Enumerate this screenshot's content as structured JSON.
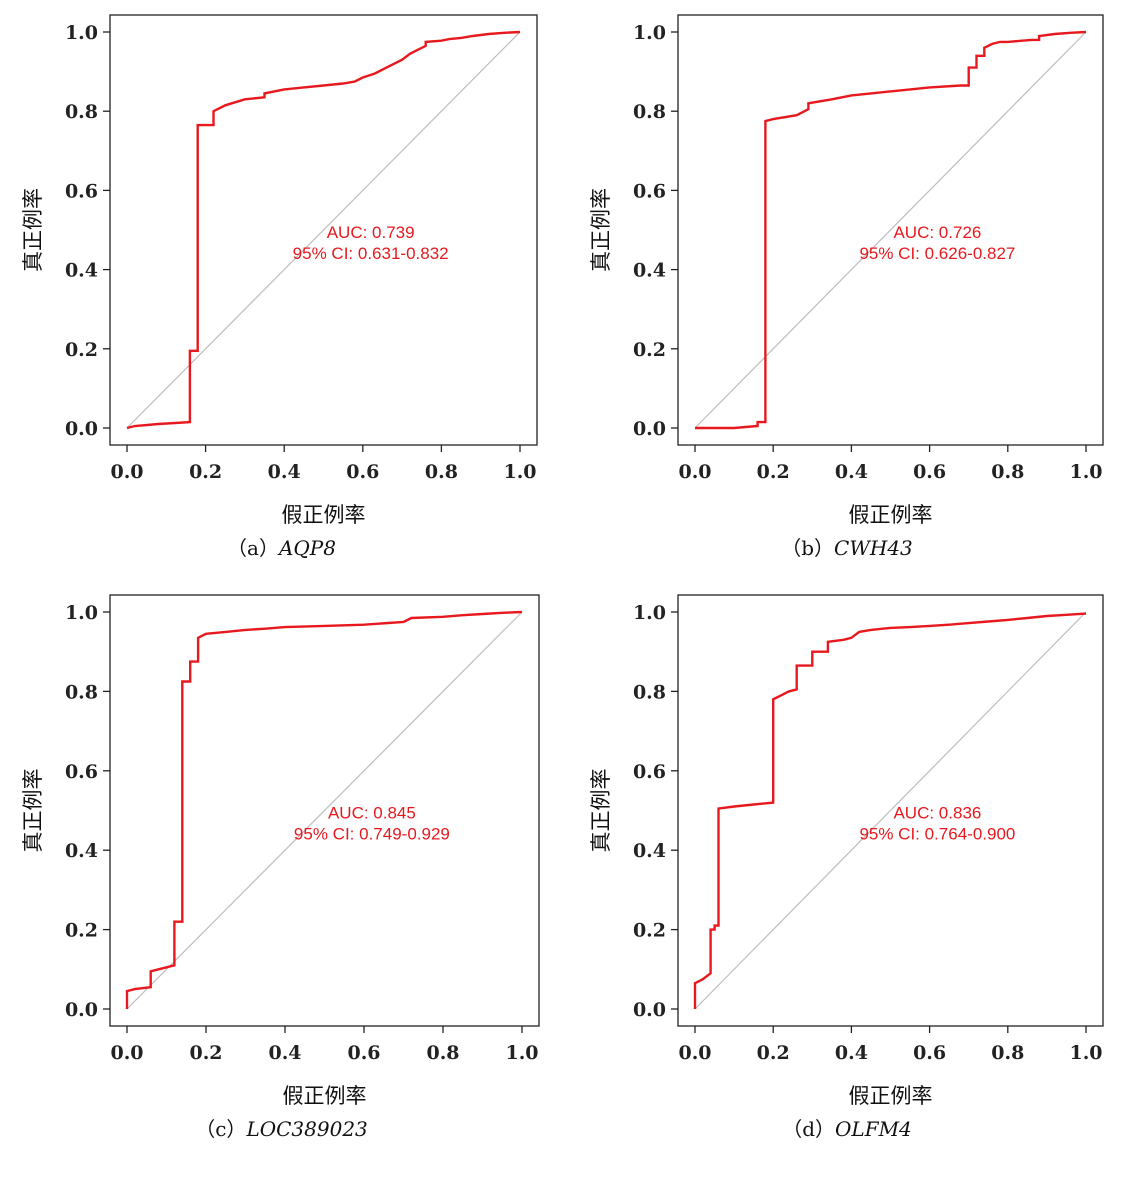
{
  "xlabel": "假正例率",
  "ylabel": "真正例率",
  "ticks": [
    "0.0",
    "0.2",
    "0.4",
    "0.6",
    "0.8",
    "1.0"
  ],
  "colors": {
    "roc": "#e8191e",
    "diagonal": "#bdbdbd",
    "frame": "#222222"
  },
  "chart_data": [
    {
      "type": "line",
      "caption_prefix": "（a）",
      "caption_gene": "AQP8",
      "auc_text": "AUC: 0.739",
      "ci_text": "95% CI: 0.631-0.832",
      "xlim": [
        0,
        1
      ],
      "ylim": [
        0,
        1
      ],
      "series": [
        {
          "x": [
            0.0,
            0.02,
            0.08,
            0.16,
            0.16,
            0.18,
            0.18,
            0.22,
            0.22,
            0.25,
            0.3,
            0.35,
            0.35,
            0.4,
            0.45,
            0.5,
            0.55,
            0.58,
            0.6,
            0.63,
            0.65,
            0.68,
            0.7,
            0.72,
            0.74,
            0.76,
            0.76,
            0.8,
            0.82,
            0.85,
            0.88,
            0.92,
            0.96,
            1.0
          ],
          "y": [
            0.0,
            0.005,
            0.01,
            0.015,
            0.195,
            0.195,
            0.765,
            0.765,
            0.8,
            0.815,
            0.83,
            0.835,
            0.845,
            0.855,
            0.86,
            0.865,
            0.87,
            0.875,
            0.885,
            0.895,
            0.905,
            0.92,
            0.93,
            0.945,
            0.955,
            0.965,
            0.975,
            0.978,
            0.982,
            0.985,
            0.99,
            0.995,
            0.998,
            1.0
          ]
        }
      ]
    },
    {
      "type": "line",
      "caption_prefix": "（b）",
      "caption_gene": "CWH43",
      "auc_text": "AUC: 0.726",
      "ci_text": "95% CI: 0.626-0.827",
      "xlim": [
        0,
        1
      ],
      "ylim": [
        0,
        1
      ],
      "series": [
        {
          "x": [
            0.0,
            0.1,
            0.16,
            0.16,
            0.18,
            0.18,
            0.2,
            0.26,
            0.29,
            0.29,
            0.35,
            0.4,
            0.45,
            0.5,
            0.55,
            0.6,
            0.68,
            0.7,
            0.7,
            0.72,
            0.72,
            0.74,
            0.74,
            0.76,
            0.78,
            0.8,
            0.86,
            0.88,
            0.88,
            0.92,
            0.96,
            1.0
          ],
          "y": [
            0.0,
            0.0,
            0.005,
            0.015,
            0.015,
            0.775,
            0.78,
            0.79,
            0.805,
            0.82,
            0.83,
            0.84,
            0.845,
            0.85,
            0.855,
            0.86,
            0.865,
            0.865,
            0.91,
            0.91,
            0.94,
            0.94,
            0.96,
            0.97,
            0.975,
            0.975,
            0.98,
            0.98,
            0.99,
            0.995,
            0.998,
            1.0
          ]
        }
      ]
    },
    {
      "type": "line",
      "caption_prefix": "（c）",
      "caption_gene": "LOC389023",
      "auc_text": "AUC: 0.845",
      "ci_text": "95% CI: 0.749-0.929",
      "xlim": [
        0,
        1
      ],
      "ylim": [
        0,
        1
      ],
      "series": [
        {
          "x": [
            0.0,
            0.0,
            0.02,
            0.06,
            0.06,
            0.08,
            0.1,
            0.12,
            0.12,
            0.14,
            0.14,
            0.16,
            0.16,
            0.18,
            0.18,
            0.2,
            0.25,
            0.3,
            0.35,
            0.4,
            0.5,
            0.6,
            0.7,
            0.72,
            0.8,
            0.85,
            0.9,
            0.95,
            1.0
          ],
          "y": [
            0.0,
            0.045,
            0.05,
            0.055,
            0.095,
            0.1,
            0.105,
            0.11,
            0.22,
            0.22,
            0.825,
            0.825,
            0.875,
            0.875,
            0.935,
            0.945,
            0.95,
            0.955,
            0.958,
            0.962,
            0.965,
            0.968,
            0.975,
            0.985,
            0.988,
            0.992,
            0.995,
            0.998,
            1.0
          ]
        }
      ]
    },
    {
      "type": "line",
      "caption_prefix": "（d）",
      "caption_gene": "OLFM4",
      "auc_text": "AUC: 0.836",
      "ci_text": "95% CI: 0.764-0.900",
      "xlim": [
        0,
        1
      ],
      "ylim": [
        0,
        1
      ],
      "series": [
        {
          "x": [
            0.0,
            0.0,
            0.02,
            0.04,
            0.04,
            0.05,
            0.05,
            0.06,
            0.06,
            0.1,
            0.15,
            0.2,
            0.2,
            0.22,
            0.24,
            0.26,
            0.26,
            0.3,
            0.3,
            0.34,
            0.34,
            0.38,
            0.4,
            0.42,
            0.45,
            0.5,
            0.55,
            0.6,
            0.65,
            0.7,
            0.75,
            0.8,
            0.85,
            0.9,
            0.95,
            1.0
          ],
          "y": [
            0.0,
            0.065,
            0.075,
            0.09,
            0.2,
            0.2,
            0.21,
            0.21,
            0.505,
            0.51,
            0.515,
            0.52,
            0.78,
            0.79,
            0.8,
            0.805,
            0.865,
            0.865,
            0.9,
            0.9,
            0.925,
            0.93,
            0.935,
            0.95,
            0.955,
            0.96,
            0.962,
            0.965,
            0.968,
            0.972,
            0.976,
            0.98,
            0.985,
            0.99,
            0.993,
            0.996
          ]
        }
      ]
    }
  ]
}
